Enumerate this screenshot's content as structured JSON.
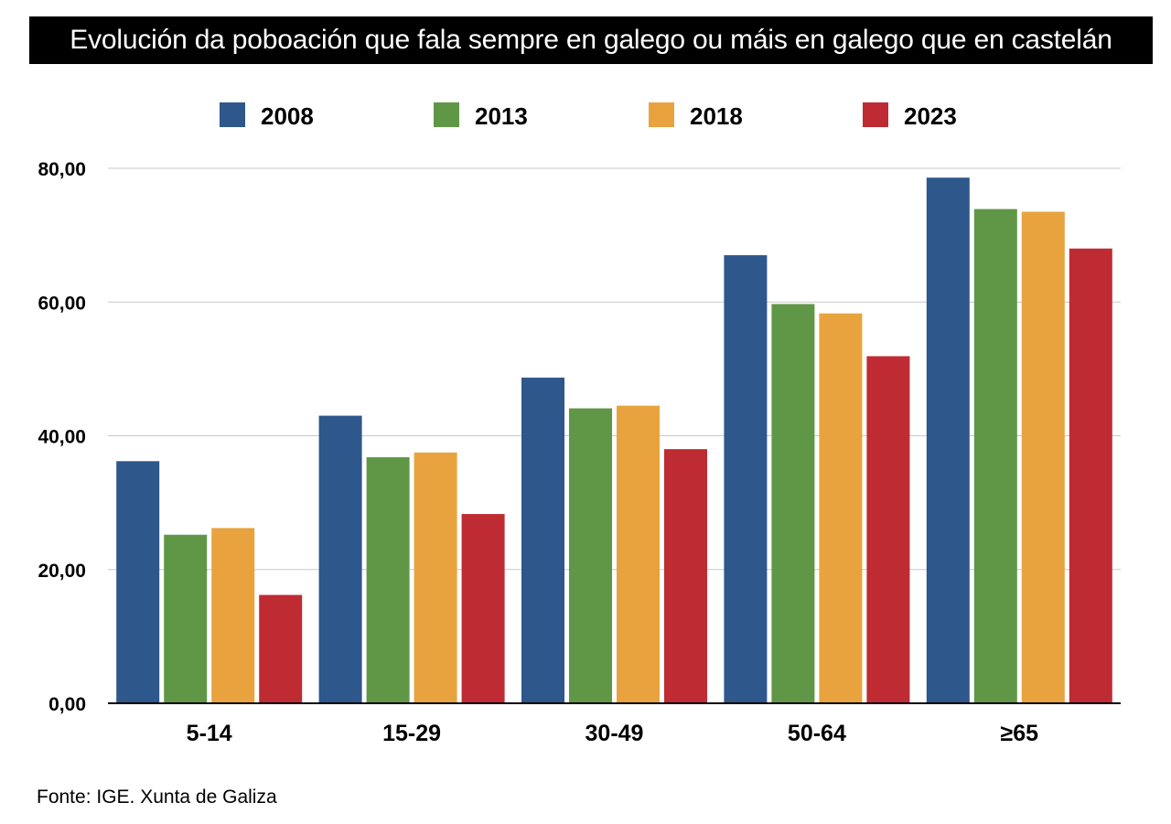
{
  "chart_data": {
    "type": "bar",
    "title": "Evolución da poboación que fala sempre en galego ou máis en galego que en castelán",
    "categories": [
      "5-14",
      "15-29",
      "30-49",
      "50-64",
      "≥65"
    ],
    "series": [
      {
        "name": "2008",
        "color": "#2e578b",
        "values": [
          36.2,
          43.0,
          48.7,
          67.0,
          78.6
        ]
      },
      {
        "name": "2013",
        "color": "#5f9747",
        "values": [
          25.2,
          36.8,
          44.1,
          59.7,
          73.9
        ]
      },
      {
        "name": "2018",
        "color": "#e8a33e",
        "values": [
          26.2,
          37.5,
          44.5,
          58.3,
          73.5
        ]
      },
      {
        "name": "2023",
        "color": "#bf2b32",
        "values": [
          16.2,
          28.3,
          38.0,
          51.9,
          68.0
        ]
      }
    ],
    "yticks": [
      "0,00",
      "20,00",
      "40,00",
      "60,00",
      "80,00"
    ],
    "ytick_values": [
      0,
      20,
      40,
      60,
      80
    ],
    "ylim": [
      0,
      80
    ],
    "xlabel": "",
    "ylabel": "",
    "grid": true,
    "legend_position": "top-center"
  },
  "source": "Fonte: IGE. Xunta de Galiza"
}
